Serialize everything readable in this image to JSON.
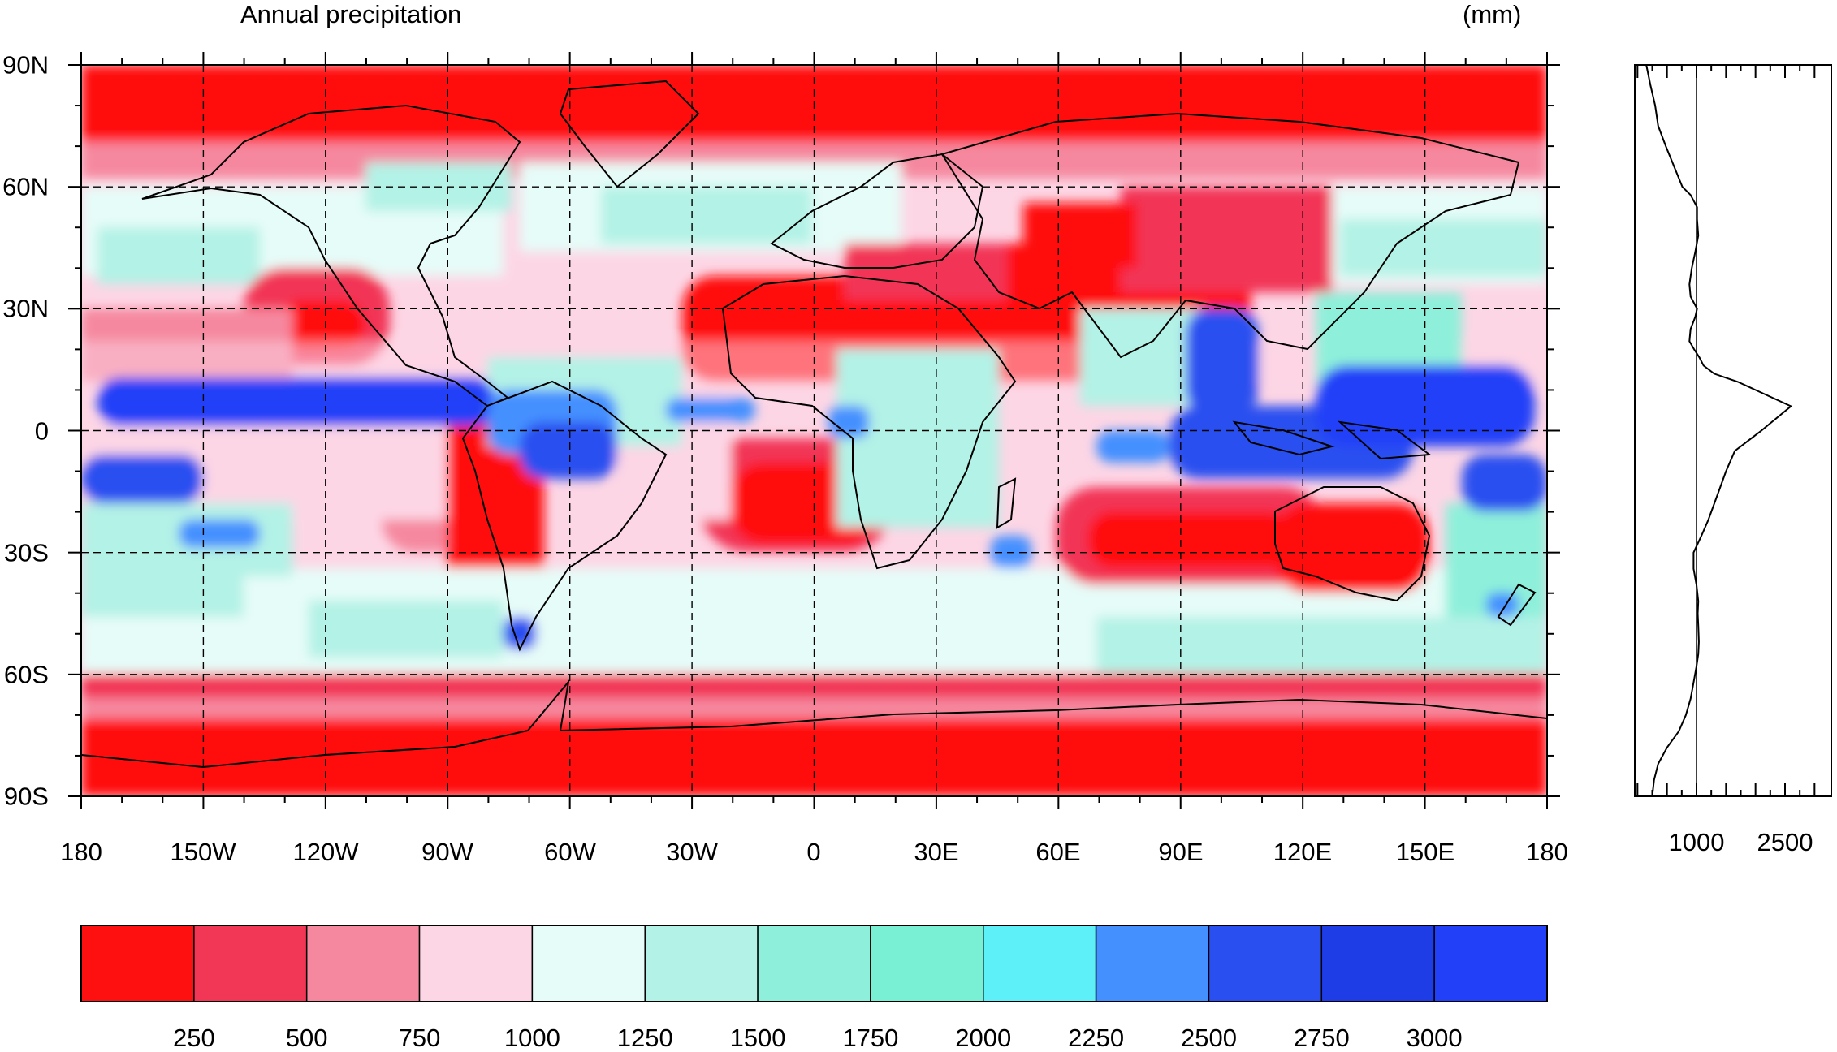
{
  "title": "Annual precipitation",
  "unit": "(mm)",
  "map": {
    "lat_labels": [
      "90N",
      "60N",
      "30N",
      "0",
      "30S",
      "60S",
      "90S"
    ],
    "lon_labels": [
      "180",
      "150W",
      "120W",
      "90W",
      "60W",
      "30W",
      "0",
      "30E",
      "60E",
      "90E",
      "120E",
      "150E",
      "180"
    ]
  },
  "colorbar": {
    "colors": [
      "#ff1010",
      "#f23656",
      "#f5889f",
      "#fdd6e5",
      "#e6fcf8",
      "#b3f2e6",
      "#8ef0da",
      "#79f0d4",
      "#5ef0f8",
      "#4490ff",
      "#2a4ff0",
      "#1f3de6",
      "#2140f8"
    ],
    "labels": [
      "250",
      "500",
      "750",
      "1000",
      "1250",
      "1500",
      "1750",
      "2000",
      "2250",
      "2500",
      "2750",
      "3000"
    ]
  },
  "chart_data": {
    "type": "line",
    "title": "",
    "xlabel": "",
    "ylabel": "",
    "x_ticks": [
      "1000",
      "2500"
    ],
    "x": [
      150,
      220,
      300,
      350,
      480,
      620,
      760,
      900,
      1010,
      1010,
      1030,
      980,
      920,
      880,
      900,
      1010,
      980,
      900,
      880,
      960,
      1050,
      1120,
      1300,
      1700,
      2600,
      2100,
      1650,
      1500,
      1400,
      1300,
      1200,
      1080,
      950,
      950,
      1000,
      1030,
      1020,
      1030,
      1040,
      1030,
      1000,
      950,
      900,
      820,
      700,
      500,
      350,
      280,
      250
    ],
    "y": [
      90,
      85,
      80,
      75,
      70,
      65,
      60,
      58,
      55,
      52,
      48,
      44,
      40,
      36,
      33,
      30,
      28,
      25,
      22,
      20,
      18,
      16,
      14,
      12,
      6,
      0,
      -5,
      -10,
      -14,
      -18,
      -22,
      -26,
      -30,
      -34,
      -38,
      -42,
      -45,
      -48,
      -52,
      -55,
      -58,
      -62,
      -66,
      -70,
      -74,
      -78,
      -82,
      -86,
      -90
    ]
  }
}
